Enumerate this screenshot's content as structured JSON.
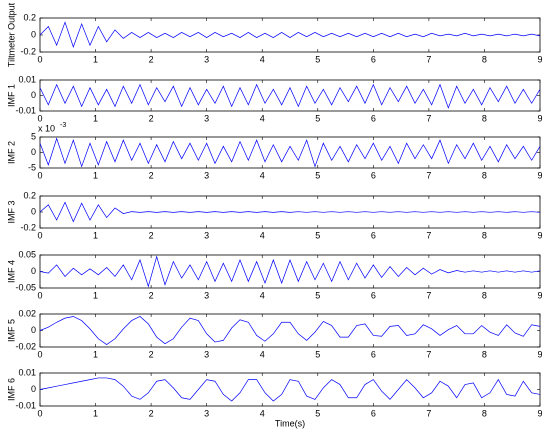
{
  "chart_data": [
    {
      "type": "line",
      "ylabel": "Tiltmeter Output",
      "xlim": [
        0,
        9
      ],
      "xticks": [
        0,
        1,
        2,
        3,
        4,
        5,
        6,
        7,
        8,
        9
      ],
      "ylim": [
        -0.2,
        0.2
      ],
      "yticks": [
        -0.2,
        0,
        0.2
      ],
      "x": [
        0,
        0.15,
        0.3,
        0.45,
        0.6,
        0.75,
        0.9,
        1.05,
        1.2,
        1.35,
        1.5,
        1.65,
        1.8,
        1.95,
        2.1,
        2.25,
        2.4,
        2.55,
        2.7,
        2.85,
        3,
        3.15,
        3.3,
        3.45,
        3.6,
        3.75,
        3.9,
        4.05,
        4.2,
        4.35,
        4.5,
        4.65,
        4.8,
        4.95,
        5.1,
        5.25,
        5.4,
        5.55,
        5.7,
        5.85,
        6,
        6.15,
        6.3,
        6.45,
        6.6,
        6.75,
        6.9,
        7.05,
        7.2,
        7.35,
        7.5,
        7.65,
        7.8,
        7.95,
        8.1,
        8.25,
        8.4,
        8.55,
        8.7,
        8.85,
        9
      ],
      "series": [
        {
          "color": "#0000ff",
          "values": [
            0,
            0.1,
            -0.12,
            0.15,
            -0.14,
            0.13,
            -0.12,
            0.1,
            -0.08,
            0.06,
            -0.04,
            0.03,
            -0.03,
            0.03,
            -0.03,
            0.02,
            -0.03,
            0.03,
            -0.02,
            0.03,
            -0.03,
            0.03,
            -0.02,
            0.02,
            -0.03,
            0.03,
            -0.03,
            0.02,
            -0.03,
            0.03,
            -0.03,
            0.03,
            -0.02,
            0.03,
            -0.02,
            0.02,
            -0.02,
            0.02,
            -0.02,
            0.02,
            -0.02,
            0.02,
            -0.02,
            0.02,
            -0.02,
            0.01,
            -0.02,
            0.02,
            -0.01,
            0.01,
            -0.01,
            0.02,
            -0.01,
            0.01,
            -0.01,
            0.01,
            -0.01,
            0.01,
            -0.01,
            0.01,
            -0.01
          ]
        }
      ]
    },
    {
      "type": "line",
      "ylabel": "IMF 1",
      "xlim": [
        0,
        9
      ],
      "xticks": [
        0,
        1,
        2,
        3,
        4,
        5,
        6,
        7,
        8,
        9
      ],
      "ylim": [
        -0.01,
        0.01
      ],
      "yticks": [
        -0.01,
        0,
        0.01
      ],
      "x": [
        0,
        0.15,
        0.3,
        0.45,
        0.6,
        0.75,
        0.9,
        1.05,
        1.2,
        1.35,
        1.5,
        1.65,
        1.8,
        1.95,
        2.1,
        2.25,
        2.4,
        2.55,
        2.7,
        2.85,
        3,
        3.15,
        3.3,
        3.45,
        3.6,
        3.75,
        3.9,
        4.05,
        4.2,
        4.35,
        4.5,
        4.65,
        4.8,
        4.95,
        5.1,
        5.25,
        5.4,
        5.55,
        5.7,
        5.85,
        6,
        6.15,
        6.3,
        6.45,
        6.6,
        6.75,
        6.9,
        7.05,
        7.2,
        7.35,
        7.5,
        7.65,
        7.8,
        7.95,
        8.1,
        8.25,
        8.4,
        8.55,
        8.7,
        8.85,
        9
      ],
      "series": [
        {
          "color": "#0000ff",
          "values": [
            0.005,
            -0.006,
            0.007,
            -0.005,
            0.006,
            -0.007,
            0.005,
            -0.006,
            0.004,
            -0.007,
            0.006,
            -0.005,
            0.007,
            -0.006,
            0.005,
            -0.004,
            0.006,
            -0.007,
            0.005,
            -0.006,
            0.004,
            -0.005,
            0.006,
            -0.007,
            0.005,
            -0.006,
            0.007,
            -0.005,
            0.004,
            -0.006,
            0.005,
            -0.007,
            0.006,
            -0.005,
            0.004,
            -0.006,
            0.005,
            -0.004,
            0.006,
            -0.005,
            0.007,
            -0.006,
            0.005,
            -0.004,
            0.006,
            -0.005,
            0.004,
            -0.006,
            0.007,
            -0.008,
            0.006,
            -0.005,
            0.004,
            -0.006,
            0.005,
            -0.004,
            0.006,
            -0.005,
            0.004,
            -0.005,
            0.004
          ]
        }
      ]
    },
    {
      "type": "line",
      "ylabel": "IMF 2",
      "annotation": "x 10",
      "annotation_exponent": "-3",
      "xlim": [
        0,
        9
      ],
      "xticks": [
        0,
        1,
        2,
        3,
        4,
        5,
        6,
        7,
        8,
        9
      ],
      "ylim": [
        -5,
        5
      ],
      "yticks": [
        -5,
        0,
        5
      ],
      "x": [
        0,
        0.15,
        0.3,
        0.45,
        0.6,
        0.75,
        0.9,
        1.05,
        1.2,
        1.35,
        1.5,
        1.65,
        1.8,
        1.95,
        2.1,
        2.25,
        2.4,
        2.55,
        2.7,
        2.85,
        3,
        3.15,
        3.3,
        3.45,
        3.6,
        3.75,
        3.9,
        4.05,
        4.2,
        4.35,
        4.5,
        4.65,
        4.8,
        4.95,
        5.1,
        5.25,
        5.4,
        5.55,
        5.7,
        5.85,
        6,
        6.15,
        6.3,
        6.45,
        6.6,
        6.75,
        6.9,
        7.05,
        7.2,
        7.35,
        7.5,
        7.65,
        7.8,
        7.95,
        8.1,
        8.25,
        8.4,
        8.55,
        8.7,
        8.85,
        9
      ],
      "series": [
        {
          "color": "#0000ff",
          "values": [
            3,
            -4,
            4.5,
            -3.5,
            4,
            -4.5,
            3,
            -4,
            3.5,
            -3,
            4,
            -2.5,
            3,
            -3.5,
            2.5,
            -3,
            3.5,
            -2,
            3,
            -2.5,
            3,
            -3.5,
            2,
            -3,
            3.5,
            -2.5,
            4,
            -3,
            2.5,
            -3,
            2,
            -2.5,
            4,
            -4.5,
            3,
            -2.5,
            2,
            -3,
            2.5,
            -2,
            3,
            -2.5,
            2,
            -3.5,
            3,
            -2,
            2.5,
            -2,
            4,
            -3.5,
            2.5,
            -2,
            3,
            -2.5,
            2,
            -3,
            2.5,
            -2,
            2,
            -2.5,
            2
          ]
        }
      ]
    },
    {
      "type": "line",
      "ylabel": "IMF 3",
      "xlim": [
        0,
        9
      ],
      "xticks": [
        0,
        1,
        2,
        3,
        4,
        5,
        6,
        7,
        8,
        9
      ],
      "ylim": [
        -0.2,
        0.2
      ],
      "yticks": [
        -0.2,
        0,
        0.2
      ],
      "x": [
        0,
        0.15,
        0.3,
        0.45,
        0.6,
        0.75,
        0.9,
        1.05,
        1.2,
        1.35,
        1.5,
        1.65,
        1.8,
        1.95,
        2.1,
        2.25,
        2.4,
        2.55,
        2.7,
        2.85,
        3,
        3.15,
        3.3,
        3.45,
        3.6,
        3.75,
        3.9,
        4.05,
        4.2,
        4.35,
        4.5,
        4.65,
        4.8,
        4.95,
        5.1,
        5.25,
        5.4,
        5.55,
        5.7,
        5.85,
        6,
        6.15,
        6.3,
        6.45,
        6.6,
        6.75,
        6.9,
        7.05,
        7.2,
        7.35,
        7.5,
        7.65,
        7.8,
        7.95,
        8.1,
        8.25,
        8.4,
        8.55,
        8.7,
        8.85,
        9
      ],
      "series": [
        {
          "color": "#0000ff",
          "values": [
            0,
            0.09,
            -0.1,
            0.12,
            -0.12,
            0.11,
            -0.1,
            0.09,
            -0.07,
            0.05,
            -0.02,
            0.005,
            -0.005,
            0.005,
            -0.005,
            0.005,
            -0.005,
            0.005,
            -0.005,
            0.005,
            -0.005,
            0.005,
            -0.005,
            0.005,
            -0.005,
            0.005,
            -0.005,
            0.005,
            -0.005,
            0.005,
            -0.005,
            0.004,
            -0.004,
            0.004,
            -0.004,
            0.004,
            -0.004,
            0.004,
            -0.004,
            0.004,
            -0.004,
            0.004,
            -0.004,
            0.004,
            -0.004,
            0.004,
            -0.004,
            0.004,
            -0.004,
            0.004,
            -0.004,
            0.004,
            -0.004,
            0.004,
            -0.004,
            0.004,
            -0.004,
            0.004,
            -0.004,
            0.004,
            -0.004
          ]
        }
      ]
    },
    {
      "type": "line",
      "ylabel": "IMF 4",
      "xlim": [
        0,
        9
      ],
      "xticks": [
        0,
        1,
        2,
        3,
        4,
        5,
        6,
        7,
        8,
        9
      ],
      "ylim": [
        -0.05,
        0.05
      ],
      "yticks": [
        -0.05,
        0,
        0.05
      ],
      "x": [
        0,
        0.15,
        0.3,
        0.45,
        0.6,
        0.75,
        0.9,
        1.05,
        1.2,
        1.35,
        1.5,
        1.65,
        1.8,
        1.95,
        2.1,
        2.25,
        2.4,
        2.55,
        2.7,
        2.85,
        3,
        3.15,
        3.3,
        3.45,
        3.6,
        3.75,
        3.9,
        4.05,
        4.2,
        4.35,
        4.5,
        4.65,
        4.8,
        4.95,
        5.1,
        5.25,
        5.4,
        5.55,
        5.7,
        5.85,
        6,
        6.15,
        6.3,
        6.45,
        6.6,
        6.75,
        6.9,
        7.05,
        7.2,
        7.35,
        7.5,
        7.65,
        7.8,
        7.95,
        8.1,
        8.25,
        8.4,
        8.55,
        8.7,
        8.85,
        9
      ],
      "series": [
        {
          "color": "#0000ff",
          "values": [
            0,
            -0.005,
            0.02,
            -0.015,
            0.01,
            -0.01,
            0.008,
            -0.01,
            0.012,
            -0.015,
            0.02,
            -0.025,
            0.035,
            -0.045,
            0.045,
            -0.04,
            0.03,
            -0.02,
            0.02,
            -0.025,
            0.03,
            -0.03,
            0.025,
            -0.03,
            0.035,
            -0.03,
            0.03,
            -0.035,
            0.035,
            -0.035,
            0.035,
            -0.03,
            0.03,
            -0.025,
            0.025,
            -0.03,
            0.03,
            -0.025,
            0.025,
            -0.02,
            0.02,
            -0.018,
            0.015,
            -0.015,
            0.012,
            -0.01,
            0.01,
            -0.008,
            0.006,
            -0.004,
            0.003,
            -0.002,
            0.002,
            -0.002,
            0.002,
            -0.002,
            0.002,
            -0.002,
            0.002,
            -0.002,
            0.002
          ]
        }
      ]
    },
    {
      "type": "line",
      "ylabel": "IMF 5",
      "xlim": [
        0,
        9
      ],
      "xticks": [
        0,
        1,
        2,
        3,
        4,
        5,
        6,
        7,
        8,
        9
      ],
      "ylim": [
        -0.02,
        0.02
      ],
      "yticks": [
        -0.02,
        0,
        0.02
      ],
      "x": [
        0,
        0.15,
        0.3,
        0.45,
        0.6,
        0.75,
        0.9,
        1.05,
        1.2,
        1.35,
        1.5,
        1.65,
        1.8,
        1.95,
        2.1,
        2.25,
        2.4,
        2.55,
        2.7,
        2.85,
        3,
        3.15,
        3.3,
        3.45,
        3.6,
        3.75,
        3.9,
        4.05,
        4.2,
        4.35,
        4.5,
        4.65,
        4.8,
        4.95,
        5.1,
        5.25,
        5.4,
        5.55,
        5.7,
        5.85,
        6,
        6.15,
        6.3,
        6.45,
        6.6,
        6.75,
        6.9,
        7.05,
        7.2,
        7.35,
        7.5,
        7.65,
        7.8,
        7.95,
        8.1,
        8.25,
        8.4,
        8.55,
        8.7,
        8.85,
        9
      ],
      "series": [
        {
          "color": "#0000ff",
          "values": [
            0,
            0.004,
            0.01,
            0.015,
            0.017,
            0.012,
            0.002,
            -0.01,
            -0.017,
            -0.01,
            0.002,
            0.012,
            0.017,
            0.008,
            -0.008,
            -0.016,
            -0.01,
            0.004,
            0.015,
            0.012,
            -0.004,
            -0.014,
            -0.012,
            0.003,
            0.013,
            0.01,
            -0.006,
            -0.013,
            -0.004,
            0.01,
            0.01,
            -0.004,
            -0.012,
            -0.002,
            0.011,
            0.006,
            -0.008,
            -0.008,
            0.006,
            0.008,
            -0.006,
            -0.007,
            0.005,
            0.006,
            -0.006,
            -0.004,
            0.007,
            0.002,
            -0.006,
            0.001,
            0.006,
            -0.004,
            -0.004,
            0.006,
            -0.002,
            -0.006,
            0.007,
            -0.003,
            -0.007,
            0.007,
            0.005
          ]
        }
      ]
    },
    {
      "type": "line",
      "ylabel": "IMF 6",
      "xlabel": "Time(s)",
      "xlim": [
        0,
        9
      ],
      "xticks": [
        0,
        1,
        2,
        3,
        4,
        5,
        6,
        7,
        8,
        9
      ],
      "ylim": [
        -0.01,
        0.01
      ],
      "yticks": [
        -0.01,
        0,
        0.01
      ],
      "x": [
        0,
        0.15,
        0.3,
        0.45,
        0.6,
        0.75,
        0.9,
        1.05,
        1.2,
        1.35,
        1.5,
        1.65,
        1.8,
        1.95,
        2.1,
        2.25,
        2.4,
        2.55,
        2.7,
        2.85,
        3,
        3.15,
        3.3,
        3.45,
        3.6,
        3.75,
        3.9,
        4.05,
        4.2,
        4.35,
        4.5,
        4.65,
        4.8,
        4.95,
        5.1,
        5.25,
        5.4,
        5.55,
        5.7,
        5.85,
        6,
        6.15,
        6.3,
        6.45,
        6.6,
        6.75,
        6.9,
        7.05,
        7.2,
        7.35,
        7.5,
        7.65,
        7.8,
        7.95,
        8.1,
        8.25,
        8.4,
        8.55,
        8.7,
        8.85,
        9
      ],
      "series": [
        {
          "color": "#0000ff",
          "values": [
            0,
            0.001,
            0.002,
            0.003,
            0.004,
            0.005,
            0.006,
            0.007,
            0.007,
            0.006,
            0.002,
            -0.004,
            -0.006,
            -0.002,
            0.005,
            0.006,
            0.001,
            -0.005,
            -0.006,
            0,
            0.006,
            0.005,
            -0.003,
            -0.007,
            -0.002,
            0.006,
            0.006,
            -0.002,
            -0.007,
            -0.003,
            0.006,
            0.005,
            -0.004,
            -0.006,
            0.001,
            0.006,
            0.003,
            -0.005,
            -0.005,
            0.003,
            0.006,
            -0.001,
            -0.006,
            0,
            0.006,
            0.001,
            -0.005,
            -0.002,
            0.005,
            0.002,
            -0.005,
            0.003,
            0.004,
            -0.005,
            -0.002,
            0.006,
            -0.003,
            -0.004,
            0.005,
            -0.002,
            -0.003
          ]
        }
      ]
    }
  ]
}
